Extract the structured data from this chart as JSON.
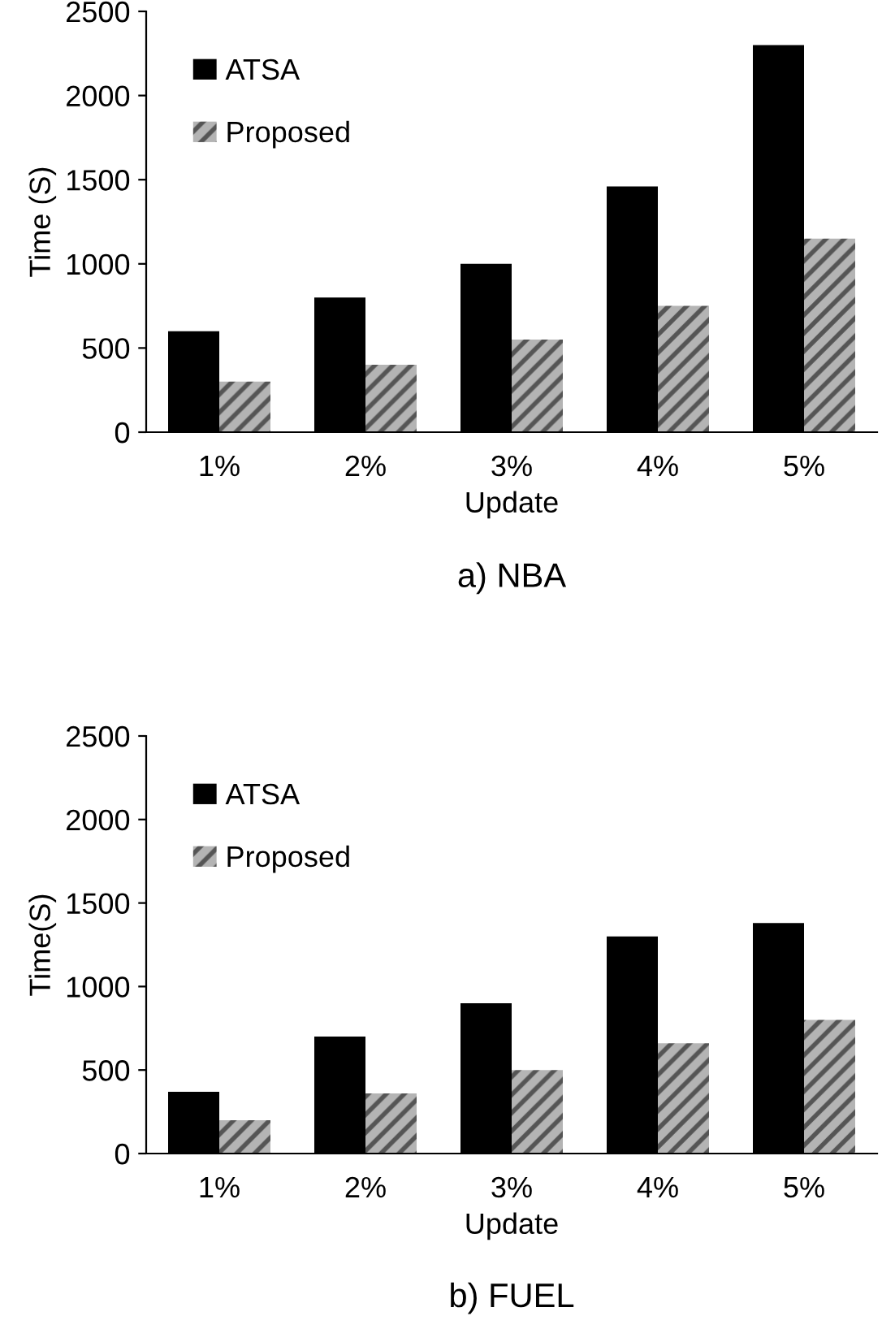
{
  "chart_data": [
    {
      "type": "bar",
      "title": "a) NBA",
      "xlabel": "Update",
      "ylabel": "Time (S)",
      "categories": [
        "1%",
        "2%",
        "3%",
        "4%",
        "5%"
      ],
      "series": [
        {
          "name": "ATSA",
          "color": "#000000",
          "values": [
            600,
            800,
            1000,
            1460,
            2300
          ]
        },
        {
          "name": "Proposed",
          "color": "#b4b4b4",
          "values": [
            300,
            400,
            550,
            750,
            1150
          ]
        }
      ],
      "ylim": [
        0,
        2500
      ],
      "yticks": [
        0,
        500,
        1000,
        1500,
        2000,
        2500
      ],
      "grid": false,
      "legend": "top left"
    },
    {
      "type": "bar",
      "title": "b) FUEL",
      "xlabel": "Update",
      "ylabel": "Time(S)",
      "categories": [
        "1%",
        "2%",
        "3%",
        "4%",
        "5%"
      ],
      "series": [
        {
          "name": "ATSA",
          "color": "#000000",
          "values": [
            370,
            700,
            900,
            1300,
            1380
          ]
        },
        {
          "name": "Proposed",
          "color": "#b4b4b4",
          "values": [
            200,
            360,
            500,
            660,
            800
          ]
        }
      ],
      "ylim": [
        0,
        2500
      ],
      "yticks": [
        0,
        500,
        1000,
        1500,
        2000,
        2500
      ],
      "grid": false,
      "legend": "top left"
    }
  ]
}
